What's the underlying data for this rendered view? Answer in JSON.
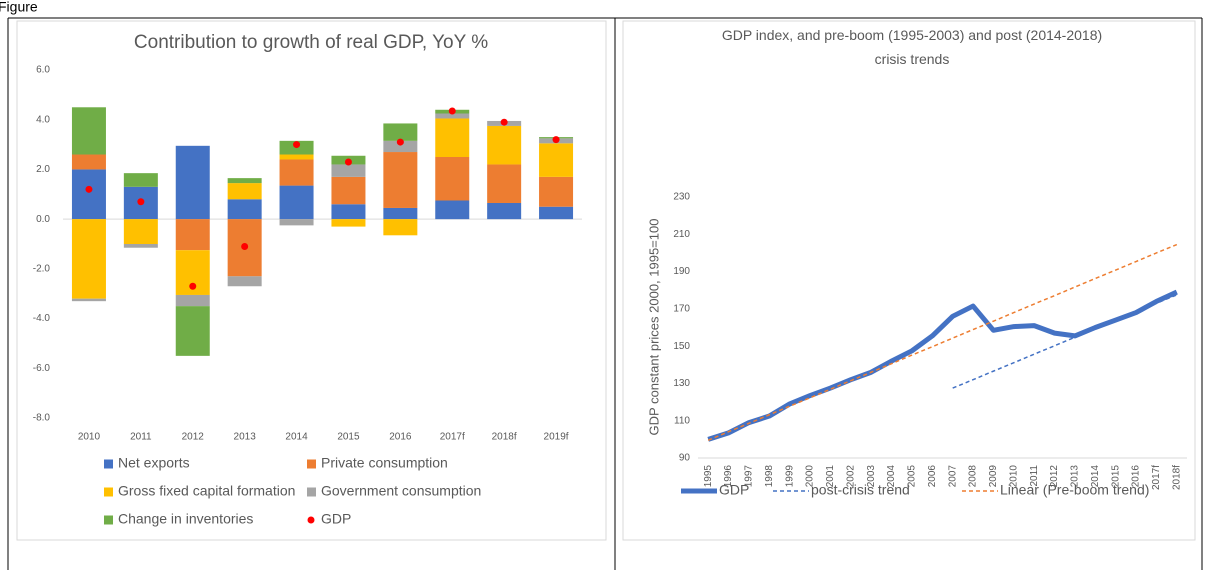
{
  "caption": "Figure",
  "chart_data": [
    {
      "type": "stacked_bar",
      "title": "Contribution to growth of real GDP, YoY %",
      "categories": [
        "2010",
        "2011",
        "2012",
        "2013",
        "2014",
        "2015",
        "2016",
        "2017f",
        "2018f",
        "2019f"
      ],
      "ylim": [
        -8,
        6
      ],
      "yticks": [
        {
          "value": -8,
          "label": "-8.0"
        },
        {
          "value": -6,
          "label": "-6.0"
        },
        {
          "value": -4,
          "label": "-4.0"
        },
        {
          "value": -2,
          "label": "-2.0"
        },
        {
          "value": 0,
          "label": "0.0"
        },
        {
          "value": 2,
          "label": "2.0"
        },
        {
          "value": 4,
          "label": "4.0"
        },
        {
          "value": 6,
          "label": "6.0"
        }
      ],
      "series": [
        {
          "name": "Net exports",
          "color": "#4472c4",
          "values": [
            2.0,
            1.3,
            2.95,
            0.8,
            1.35,
            0.6,
            0.45,
            0.75,
            0.65,
            0.5
          ]
        },
        {
          "name": "Private consumption",
          "color": "#ed7d31",
          "values": [
            0.6,
            0.0,
            -1.25,
            -2.3,
            1.05,
            1.1,
            2.25,
            1.75,
            1.55,
            1.2
          ]
        },
        {
          "name": "Gross fixed capital formation",
          "color": "#ffc000",
          "values": [
            -3.2,
            -1.0,
            -1.8,
            0.65,
            0.2,
            -0.3,
            -0.65,
            1.55,
            1.55,
            1.35
          ]
        },
        {
          "name": "Government consumption",
          "color": "#a5a5a5",
          "values": [
            -0.1,
            -0.15,
            -0.45,
            -0.4,
            -0.25,
            0.5,
            0.45,
            0.2,
            0.2,
            0.2
          ]
        },
        {
          "name": "Change in inventories",
          "color": "#70ad47",
          "values": [
            1.9,
            0.55,
            -2.0,
            0.2,
            0.55,
            0.35,
            0.7,
            0.15,
            0.0,
            0.05
          ]
        },
        {
          "name": "GDP",
          "color": "#ff0000",
          "type": "scatter",
          "values": [
            1.2,
            0.7,
            -2.7,
            -1.1,
            3.0,
            2.3,
            3.1,
            4.35,
            3.9,
            3.2
          ]
        }
      ]
    },
    {
      "type": "line",
      "title": "GDP index, and pre-boom (1995-2003) and post (2014-2018) crisis trends",
      "y_label": "GDP constant prices 2000, 1995=100",
      "categories": [
        "1995",
        "1996",
        "1997",
        "1998",
        "1999",
        "2000",
        "2001",
        "2002",
        "2003",
        "2004",
        "2005",
        "2006",
        "2007",
        "2008",
        "2009",
        "2010",
        "2011",
        "2012",
        "2013",
        "2014",
        "2015",
        "2016",
        "2017f",
        "2018f"
      ],
      "ylim": [
        90,
        230
      ],
      "yticks": [
        90,
        110,
        130,
        150,
        170,
        190,
        210,
        230
      ],
      "series": [
        {
          "name": "GDP",
          "color": "#4472c4",
          "style": "thick",
          "values": [
            100,
            103.5,
            109,
            112.5,
            119,
            123.5,
            127.5,
            132,
            136,
            142,
            147.5,
            155.5,
            166,
            171.5,
            158.5,
            160.5,
            161,
            157,
            155.5,
            160,
            164,
            168,
            174,
            179
          ]
        },
        {
          "name": "post-crisis trend",
          "color": "#4472c4",
          "style": "dashed",
          "values": [
            null,
            null,
            null,
            null,
            null,
            null,
            null,
            null,
            null,
            null,
            null,
            null,
            127.5,
            132,
            136.6,
            141.1,
            145.7,
            150.2,
            154.8,
            159.3,
            163.9,
            168.4,
            173,
            177.5
          ]
        },
        {
          "name": "Linear (Pre-boom trend)",
          "color": "#ed7d31",
          "style": "dashed",
          "values": [
            99.5,
            104.1,
            108.6,
            113.2,
            117.8,
            122.3,
            126.9,
            131.5,
            136,
            140.6,
            145.2,
            149.7,
            154.3,
            158.9,
            163.4,
            168,
            172.6,
            177.1,
            181.7,
            186.3,
            190.8,
            195.4,
            200,
            204.5
          ]
        }
      ]
    }
  ]
}
